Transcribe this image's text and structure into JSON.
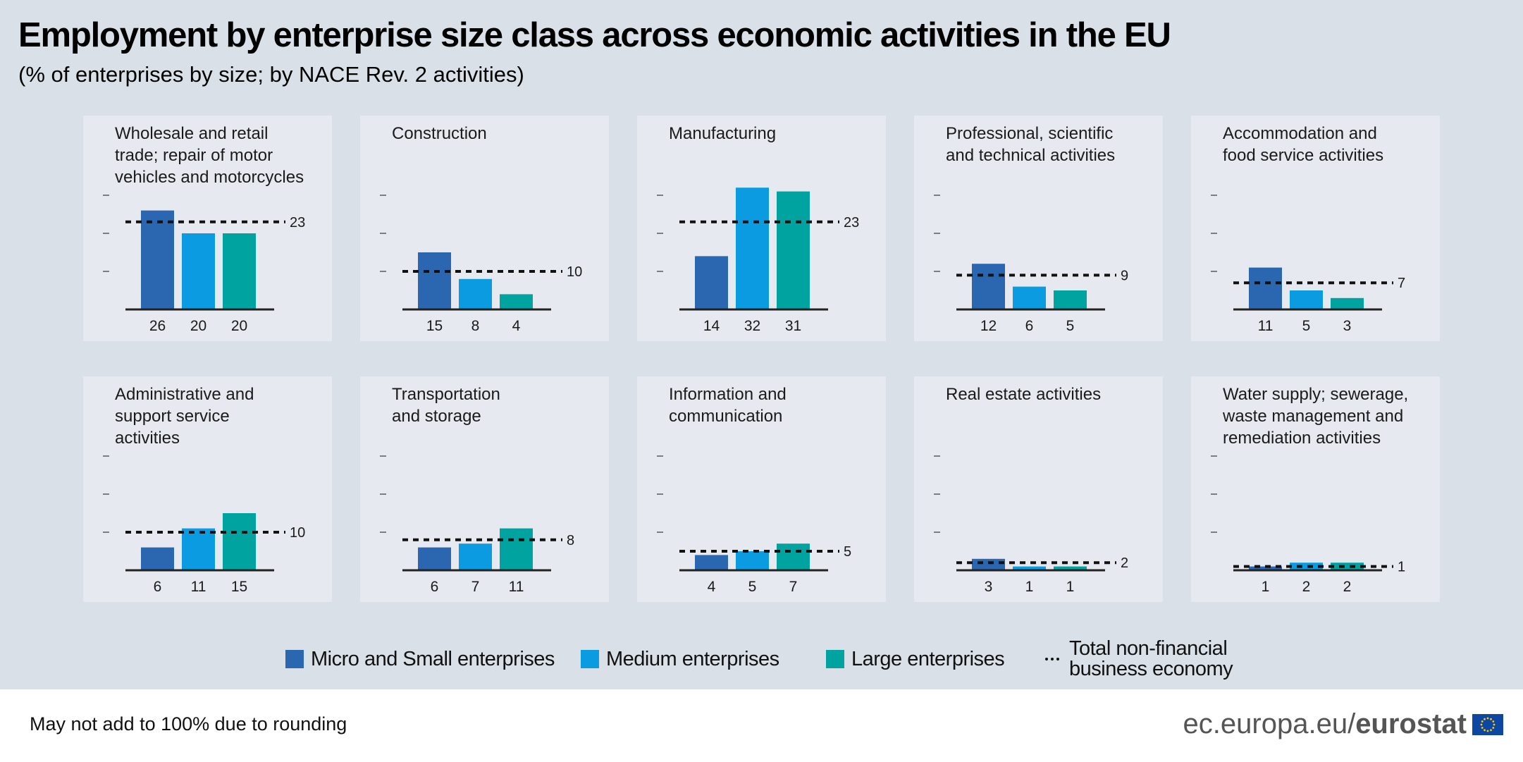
{
  "title": "Employment by enterprise size class across economic activities in the EU",
  "subtitle": "(% of enterprises by size; by NACE Rev. 2 activities)",
  "colors": {
    "micro_small": "#2b67b0",
    "medium": "#0a9be0",
    "large": "#00a3a0",
    "background": "#d9e0e8",
    "panel": "#e6e9ef"
  },
  "chart_data": {
    "type": "bar",
    "series_names": [
      "Micro and Small enterprises",
      "Medium enterprises",
      "Large enterprises"
    ],
    "average_series_name": "Total non-financial business economy",
    "ylim": [
      0,
      32
    ],
    "panels": [
      {
        "title_lines": [
          "Wholesale and retail",
          "trade; repair of motor",
          "vehicles and motorcycles"
        ],
        "values": [
          26,
          20,
          20
        ],
        "total": 23
      },
      {
        "title_lines": [
          "Construction"
        ],
        "values": [
          15,
          8,
          4
        ],
        "total": 10
      },
      {
        "title_lines": [
          "Manufacturing"
        ],
        "values": [
          14,
          32,
          31
        ],
        "total": 23
      },
      {
        "title_lines": [
          "Professional, scientific",
          "and technical activities"
        ],
        "values": [
          12,
          6,
          5
        ],
        "total": 9
      },
      {
        "title_lines": [
          "Accommodation and",
          "food service activities"
        ],
        "values": [
          11,
          5,
          3
        ],
        "total": 7
      },
      {
        "title_lines": [
          "Administrative and",
          "support service",
          "activities"
        ],
        "values": [
          6,
          11,
          15
        ],
        "total": 10
      },
      {
        "title_lines": [
          "Transportation",
          "and storage"
        ],
        "values": [
          6,
          7,
          11
        ],
        "total": 8
      },
      {
        "title_lines": [
          "Information and",
          "communication"
        ],
        "values": [
          4,
          5,
          7
        ],
        "total": 5
      },
      {
        "title_lines": [
          "Real estate activities"
        ],
        "values": [
          3,
          1,
          1
        ],
        "total": 2
      },
      {
        "title_lines": [
          "Water supply; sewerage,",
          "waste management and",
          "remediation activities"
        ],
        "values": [
          1,
          2,
          2
        ],
        "total": 1
      }
    ]
  },
  "legend": {
    "micro_small": "Micro and Small enterprises",
    "medium": "Medium enterprises",
    "large": "Large enterprises",
    "total_line1": "Total non-financial",
    "total_line2": "business economy"
  },
  "footnote": "May not add to 100% due to rounding",
  "brand": {
    "domain": "ec.europa.eu/",
    "name": "eurostat"
  },
  "icons": {
    "flag": "eu-flag-icon"
  }
}
